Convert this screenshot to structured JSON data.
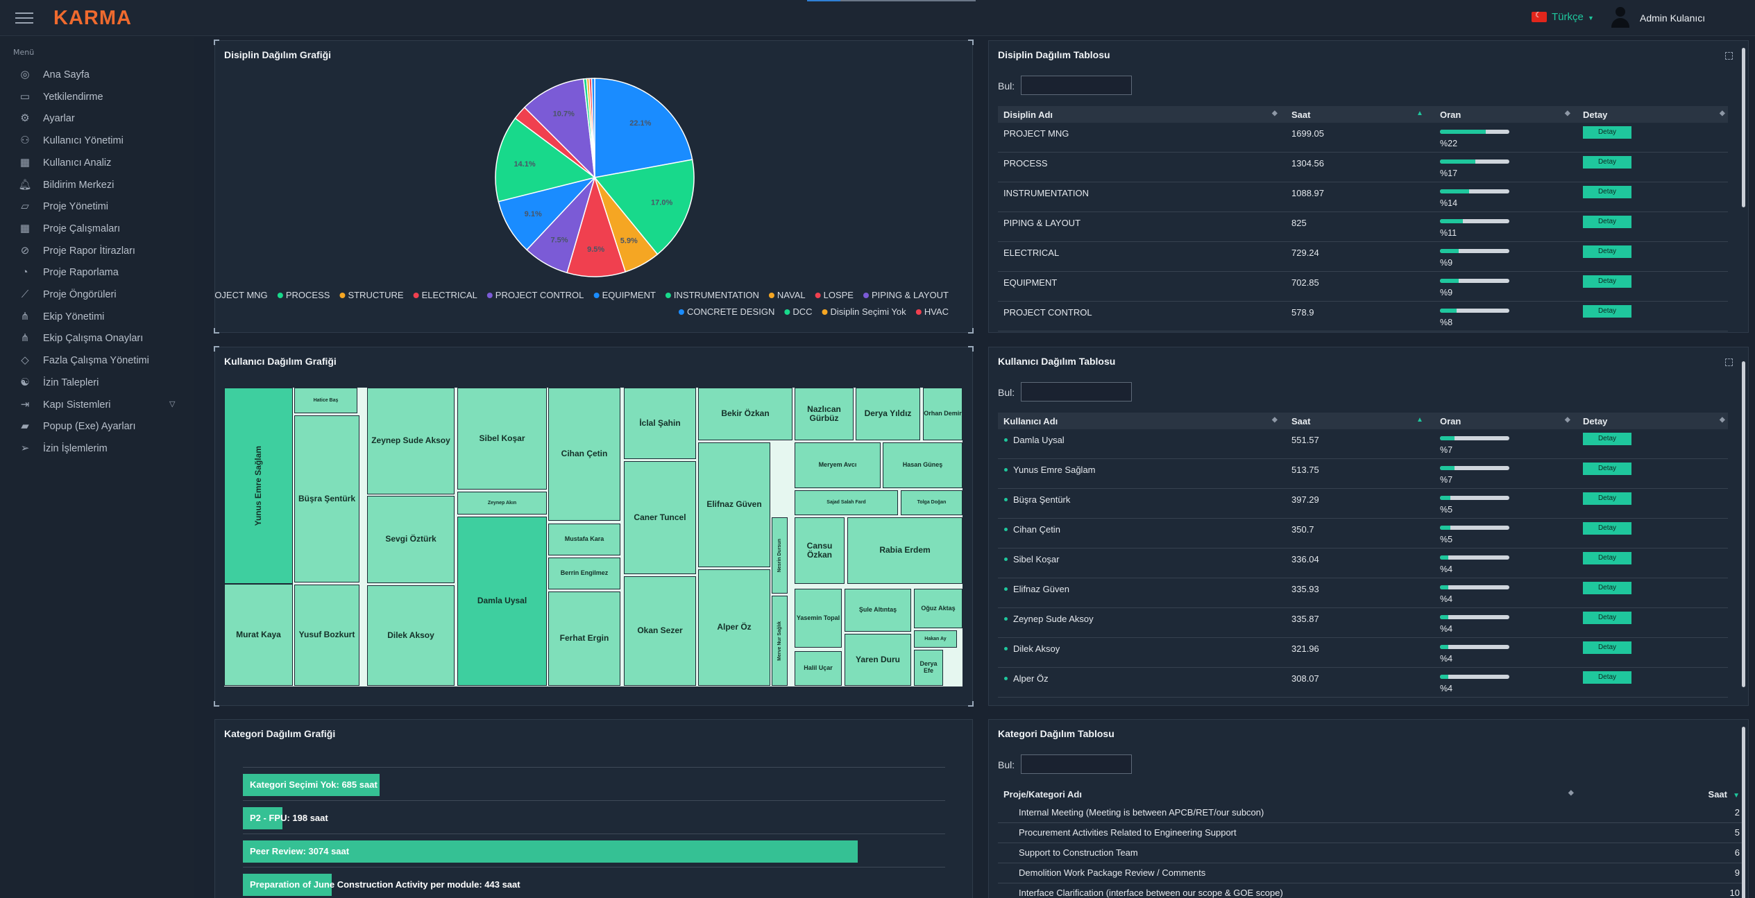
{
  "app": {
    "logo": "KARMA",
    "language": "Türkçe",
    "user": "Admin Kulanıcı"
  },
  "sidebar": {
    "heading": "Menü",
    "items": [
      {
        "label": "Ana Sayfa",
        "icon": "dashboard-icon"
      },
      {
        "label": "Yetkilendirme",
        "icon": "briefcase-icon"
      },
      {
        "label": "Ayarlar",
        "icon": "gear-icon"
      },
      {
        "label": "Kullanıcı Yönetimi",
        "icon": "users-icon"
      },
      {
        "label": "Kullanıcı Analiz",
        "icon": "calendar-icon"
      },
      {
        "label": "Bildirim Merkezi",
        "icon": "bell-icon"
      },
      {
        "label": "Proje Yönetimi",
        "icon": "folder-icon"
      },
      {
        "label": "Proje Çalışmaları",
        "icon": "calendar-icon"
      },
      {
        "label": "Proje Rapor İtirazları",
        "icon": "compass-icon"
      },
      {
        "label": "Proje Raporlama",
        "icon": "gauge-icon"
      },
      {
        "label": "Proje Öngörüleri",
        "icon": "chart-line-icon"
      },
      {
        "label": "Ekip Yönetimi",
        "icon": "sitemap-icon"
      },
      {
        "label": "Ekip Çalışma Onayları",
        "icon": "sitemap-icon"
      },
      {
        "label": "Fazla Çalışma Yönetimi",
        "icon": "diamond-icon"
      },
      {
        "label": "İzin Talepleri",
        "icon": "yin-yang-icon"
      },
      {
        "label": "Kapı Sistemleri",
        "icon": "sign-in-icon"
      },
      {
        "label": "Popup (Exe) Ayarları",
        "icon": "folder-open-icon"
      },
      {
        "label": "İzin İşlemlerim",
        "icon": "paper-plane-icon"
      }
    ]
  },
  "disiplin_chart": {
    "title": "Disiplin Dağılım Grafiği"
  },
  "chart_data": [
    {
      "type": "pie",
      "slices": [
        {
          "name": "PROJECT MNG",
          "value": 22.1,
          "label": "22.1%",
          "color": "#1a8cff"
        },
        {
          "name": "PROCESS",
          "value": 17.0,
          "label": "17.0%",
          "color": "#18d98b"
        },
        {
          "name": "STRUCTURE",
          "value": 5.9,
          "label": "5.9%",
          "color": "#f5a623"
        },
        {
          "name": "ELECTRICAL",
          "value": 9.5,
          "label": "9.5%",
          "color": "#f0404f"
        },
        {
          "name": "PROJECT CONTROL",
          "value": 7.5,
          "label": "7.5%",
          "color": "#7b5bd6"
        },
        {
          "name": "EQUIPMENT",
          "value": 9.1,
          "label": "9.1%",
          "color": "#1a8cff"
        },
        {
          "name": "INSTRUMENTATION",
          "value": 14.1,
          "label": "14.1%",
          "color": "#18d98b"
        },
        {
          "name": "LOSPE",
          "value": 2.3,
          "label": "",
          "color": "#f0404f"
        },
        {
          "name": "PIPING & LAYOUT",
          "value": 10.7,
          "label": "10.7%",
          "color": "#7b5bd6"
        },
        {
          "name": "DCC",
          "value": 0.5,
          "label": "",
          "color": "#18d98b"
        },
        {
          "name": "Disiplin Seçimi Yok",
          "value": 0.4,
          "label": "",
          "color": "#f5a623"
        },
        {
          "name": "HVAC",
          "value": 0.4,
          "label": "",
          "color": "#f0404f"
        },
        {
          "name": "CONCRETE DESIGN",
          "value": 0.5,
          "label": "",
          "color": "#1a8cff"
        }
      ],
      "legend": [
        {
          "name": "PROJECT MNG",
          "color": "#1a8cff"
        },
        {
          "name": "PROCESS",
          "color": "#18d98b"
        },
        {
          "name": "STRUCTURE",
          "color": "#f5a623"
        },
        {
          "name": "ELECTRICAL",
          "color": "#f0404f"
        },
        {
          "name": "PROJECT CONTROL",
          "color": "#7b5bd6"
        },
        {
          "name": "EQUIPMENT",
          "color": "#1a8cff"
        },
        {
          "name": "INSTRUMENTATION",
          "color": "#18d98b"
        },
        {
          "name": "NAVAL",
          "color": "#f5a623"
        },
        {
          "name": "LOSPE",
          "color": "#f0404f"
        },
        {
          "name": "PIPING & LAYOUT",
          "color": "#7b5bd6"
        },
        {
          "name": "CONCRETE DESIGN",
          "color": "#1a8cff"
        },
        {
          "name": "DCC",
          "color": "#18d98b"
        },
        {
          "name": "Disiplin Seçimi Yok",
          "color": "#f5a623"
        },
        {
          "name": "HVAC",
          "color": "#f0404f"
        }
      ]
    },
    {
      "type": "bar",
      "orientation": "horizontal",
      "bars": [
        {
          "label": "Kategori Seçimi Yok: 685 saat",
          "value": 685
        },
        {
          "label": "P2 - FPU: 198 saat",
          "value": 198
        },
        {
          "label": "Peer Review: 3074 saat",
          "value": 3074
        },
        {
          "label": "Preparation of June Construction Activity per module: 443 saat",
          "value": 443
        }
      ],
      "xlim": [
        0,
        3074
      ]
    }
  ],
  "disiplin_table": {
    "title": "Disiplin Dağılım Tablosu",
    "find_label": "Bul:",
    "headers": [
      "Disiplin Adı",
      "Saat",
      "Oran",
      "Detay"
    ],
    "button": "Detay",
    "rows": [
      {
        "name": "PROJECT MNG",
        "saat": "1699.05",
        "oran": "%22",
        "pct": 22
      },
      {
        "name": "PROCESS",
        "saat": "1304.56",
        "oran": "%17",
        "pct": 17
      },
      {
        "name": "INSTRUMENTATION",
        "saat": "1088.97",
        "oran": "%14",
        "pct": 14
      },
      {
        "name": "PIPING & LAYOUT",
        "saat": "825",
        "oran": "%11",
        "pct": 11
      },
      {
        "name": "ELECTRICAL",
        "saat": "729.24",
        "oran": "%9",
        "pct": 9
      },
      {
        "name": "EQUIPMENT",
        "saat": "702.85",
        "oran": "%9",
        "pct": 9
      },
      {
        "name": "PROJECT CONTROL",
        "saat": "578.9",
        "oran": "%8",
        "pct": 8
      }
    ]
  },
  "kullanici_chart": {
    "title": "Kullanıcı Dağılım Grafiği",
    "cells": [
      "Yunus Emre Sağlam",
      "Murat Kaya",
      "Hatice Baş",
      "Büşra Şentürk",
      "Yusuf Bozkurt",
      "Zeynep Sude Aksoy",
      "Sevgi Öztürk",
      "Dilek Aksoy",
      "Sibel Koşar",
      "Zeynep Akın",
      "Damla Uysal",
      "Cihan Çetin",
      "Mustafa Kara",
      "Berrin Engilmez",
      "Ferhat Ergin",
      "İclal Şahin",
      "Caner Tuncel",
      "Okan Sezer",
      "Bekir Özkan",
      "Elifnaz Güven",
      "Alper Öz",
      "Nesrin Dursun",
      "Merve Nur Sağlık",
      "Nazlıcan Gürbüz",
      "Derya Yıldız",
      "Orhan Demir",
      "Meryem Avcı",
      "Hasan Güneş",
      "Sajad Salah Fard",
      "Tolga Doğan",
      "Cansu Özkan",
      "Rabia Erdem",
      "Yasemin Topal",
      "Halil Uçar",
      "Şule Altıntaş",
      "Yaren Duru",
      "Oğuz Aktaş",
      "Hakan Ay",
      "Derya Efe"
    ]
  },
  "kullanici_table": {
    "title": "Kullanıcı Dağılım Tablosu",
    "find_label": "Bul:",
    "headers": [
      "Kullanıcı Adı",
      "Saat",
      "Oran",
      "Detay"
    ],
    "button": "Detay",
    "rows": [
      {
        "name": "Damla Uysal",
        "saat": "551.57",
        "oran": "%7",
        "pct": 7
      },
      {
        "name": "Yunus Emre Sağlam",
        "saat": "513.75",
        "oran": "%7",
        "pct": 7
      },
      {
        "name": "Büşra Şentürk",
        "saat": "397.29",
        "oran": "%5",
        "pct": 5
      },
      {
        "name": "Cihan Çetin",
        "saat": "350.7",
        "oran": "%5",
        "pct": 5
      },
      {
        "name": "Sibel Koşar",
        "saat": "336.04",
        "oran": "%4",
        "pct": 4
      },
      {
        "name": "Elifnaz Güven",
        "saat": "335.93",
        "oran": "%4",
        "pct": 4
      },
      {
        "name": "Zeynep Sude Aksoy",
        "saat": "335.87",
        "oran": "%4",
        "pct": 4
      },
      {
        "name": "Dilek Aksoy",
        "saat": "321.96",
        "oran": "%4",
        "pct": 4
      },
      {
        "name": "Alper Öz",
        "saat": "308.07",
        "oran": "%4",
        "pct": 4
      }
    ]
  },
  "kategori_chart": {
    "title": "Kategori Dağılım Grafiği"
  },
  "kategori_table": {
    "title": "Kategori Dağılım Tablosu",
    "find_label": "Bul:",
    "headers": [
      "Proje/Kategori Adı",
      "Saat"
    ],
    "rows": [
      {
        "name": "Internal Meeting (Meeting is between APCB/RET/our subcon)",
        "saat": "2"
      },
      {
        "name": "Procurement Activities Related to Engineering Support",
        "saat": "5"
      },
      {
        "name": "Support to Construction Team",
        "saat": "6"
      },
      {
        "name": "Demolition Work Package Review / Comments",
        "saat": "9"
      },
      {
        "name": "Interface Clarification (interface between our scope & GOE scope)",
        "saat": "10"
      }
    ]
  }
}
